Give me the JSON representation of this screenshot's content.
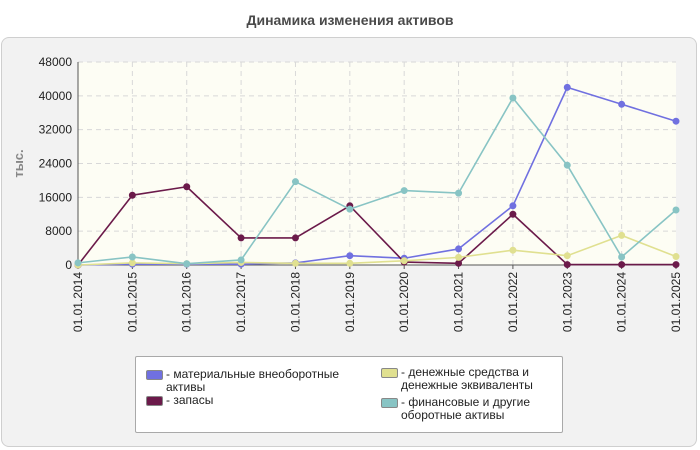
{
  "chart_data": {
    "type": "line",
    "title": "Динамика изменения активов",
    "ylabel": "тыс.",
    "xlabel": "",
    "ylim": [
      0,
      48000
    ],
    "yticks": [
      0,
      8000,
      16000,
      24000,
      32000,
      40000,
      48000
    ],
    "categories": [
      "01.01.2014",
      "01.01.2015",
      "01.01.2016",
      "01.01.2017",
      "01.01.2018",
      "01.01.2019",
      "01.01.2020",
      "01.01.2021",
      "01.01.2022",
      "01.01.2023",
      "01.01.2024",
      "01.01.2025"
    ],
    "series": [
      {
        "name": "материальные внеоборотные активы",
        "color": "#7070e0",
        "values": [
          0,
          200,
          200,
          200,
          500,
          2200,
          1600,
          3800,
          14000,
          42000,
          38000,
          34000
        ]
      },
      {
        "name": "запасы",
        "color": "#6b1a4a",
        "values": [
          0,
          16500,
          18500,
          6400,
          6400,
          14000,
          700,
          400,
          12000,
          100,
          100,
          100
        ]
      },
      {
        "name": "денежные средства и денежные эквиваленты",
        "color": "#e0e090",
        "values": [
          0,
          500,
          300,
          600,
          400,
          400,
          1000,
          1800,
          3500,
          2200,
          7000,
          2000
        ]
      },
      {
        "name": "финансовые и другие оборотные активы",
        "color": "#88c4c4",
        "values": [
          500,
          1900,
          300,
          1200,
          19700,
          13200,
          17600,
          17000,
          39500,
          23600,
          1900,
          13000
        ]
      }
    ],
    "legend_position": "bottom-center",
    "grid": true
  }
}
